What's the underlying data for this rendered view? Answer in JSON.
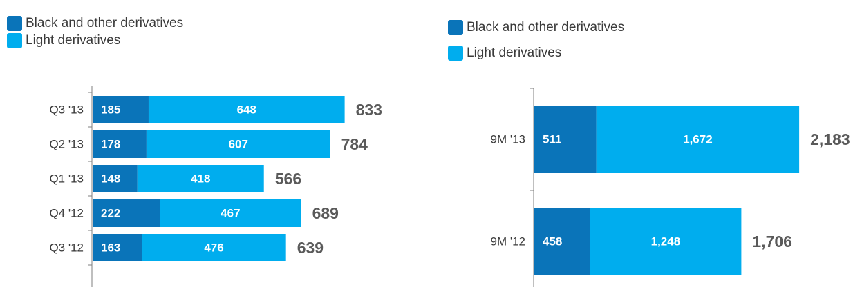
{
  "colors": {
    "dark": "#0a74b9",
    "light": "#00adee",
    "axis": "#7f7f7f"
  },
  "chart_data": [
    {
      "type": "bar",
      "orientation": "horizontal",
      "stacked": true,
      "categories": [
        "Q3 '13",
        "Q2 '13",
        "Q1 '13",
        "Q4 '12",
        "Q3 '12"
      ],
      "series": [
        {
          "name": "Black and other derivatives",
          "values": [
            185,
            178,
            148,
            222,
            163
          ]
        },
        {
          "name": "Light derivatives",
          "values": [
            648,
            607,
            418,
            467,
            476
          ]
        }
      ],
      "totals": [
        "833",
        "784",
        "566",
        "689",
        "639"
      ],
      "segment_labels": [
        [
          "185",
          "178",
          "148",
          "222",
          "163"
        ],
        [
          "648",
          "607",
          "418",
          "467",
          "476"
        ]
      ],
      "legend": [
        "Black and other derivatives",
        "Light derivatives"
      ],
      "legend_position": "top-left"
    },
    {
      "type": "bar",
      "orientation": "horizontal",
      "stacked": true,
      "categories": [
        "9M '13",
        "9M '12"
      ],
      "series": [
        {
          "name": "Black and other derivatives",
          "values": [
            511,
            458
          ]
        },
        {
          "name": "Light derivatives",
          "values": [
            1672,
            1248
          ]
        }
      ],
      "totals": [
        "2,183",
        "1,706"
      ],
      "segment_labels": [
        [
          "511",
          "458"
        ],
        [
          "1,672",
          "1,248"
        ]
      ],
      "legend": [
        "Black and other derivatives",
        "Light derivatives"
      ],
      "legend_position": "top-left"
    }
  ]
}
